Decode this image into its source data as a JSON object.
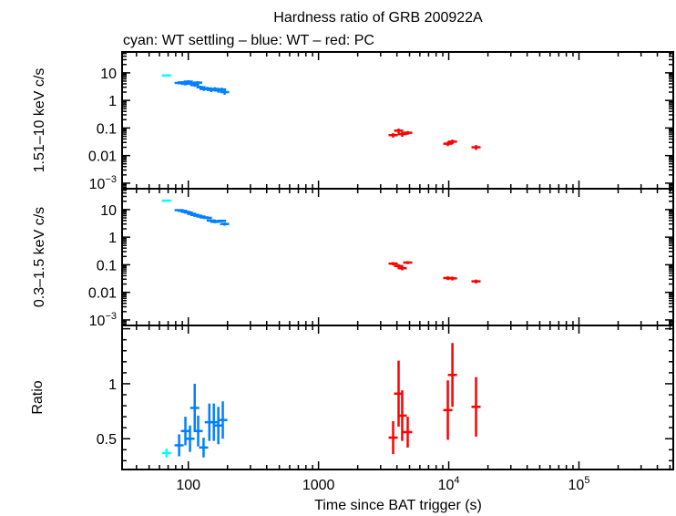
{
  "chart_data": {
    "type": "scatter",
    "title": "Hardness ratio of GRB 200922A",
    "subtitle": "cyan: WT settling – blue: WT – red: PC",
    "xlabel": "Time since BAT trigger (s)",
    "xscale": "log",
    "xlim": [
      31,
      530000
    ],
    "xticks": [
      {
        "v": 100,
        "label": "100"
      },
      {
        "v": 1000,
        "label": "1000"
      },
      {
        "v": 10000,
        "label": "10",
        "sup": "4"
      },
      {
        "v": 100000,
        "label": "10",
        "sup": "5"
      }
    ],
    "colors": {
      "WT settling": "#00ffff",
      "WT": "#0080ff",
      "PC": "#ff0000"
    },
    "panels": [
      {
        "ylabel": "1.51–10 keV c/s",
        "yscale": "log",
        "ylim": [
          0.00063,
          57
        ],
        "yticks": [
          {
            "v": 10,
            "label": "10"
          },
          {
            "v": 1,
            "label": "1"
          },
          {
            "v": 0.1,
            "label": "0.1"
          },
          {
            "v": 0.01,
            "label": "0.01"
          },
          {
            "v": 0.001,
            "label": "10",
            "sup": "−3"
          }
        ],
        "series": [
          {
            "mode": "WT settling",
            "x": [
              68
            ],
            "y": [
              8.0
            ],
            "yerr": [
              0.6
            ]
          },
          {
            "mode": "WT",
            "x": [
              85,
              90,
              95,
              100,
              106,
              112,
              118,
              125,
              132,
              140,
              150,
              160,
              170,
              180,
              190
            ],
            "y": [
              4.3,
              4.5,
              4.0,
              4.8,
              4.2,
              3.6,
              4.4,
              3.0,
              2.6,
              2.7,
              2.4,
              2.6,
              2.3,
              2.5,
              2.0
            ],
            "yerr": [
              0.5,
              0.5,
              0.5,
              0.6,
              0.5,
              0.5,
              0.6,
              0.4,
              0.4,
              0.4,
              0.4,
              0.4,
              0.4,
              0.4,
              0.4
            ]
          },
          {
            "mode": "PC",
            "x": [
              3740,
              4120,
              4390,
              4840,
              9840,
              10670,
              16200
            ],
            "y": [
              0.055,
              0.08,
              0.06,
              0.067,
              0.027,
              0.032,
              0.02
            ],
            "yerr": [
              0.01,
              0.015,
              0.012,
              0.01,
              0.005,
              0.006,
              0.004
            ]
          }
        ]
      },
      {
        "ylabel": "0.3–1.5 keV c/s",
        "yscale": "log",
        "ylim": [
          0.00063,
          57
        ],
        "yticks": [
          {
            "v": 10,
            "label": "10"
          },
          {
            "v": 1,
            "label": "1"
          },
          {
            "v": 0.1,
            "label": "0.1"
          },
          {
            "v": 0.01,
            "label": "0.01"
          },
          {
            "v": 0.001,
            "label": "10",
            "sup": "−3"
          }
        ],
        "series": [
          {
            "mode": "WT settling",
            "x": [
              68
            ],
            "y": [
              21
            ],
            "yerr": [
              1.2
            ]
          },
          {
            "mode": "WT",
            "x": [
              85,
              90,
              95,
              100,
              106,
              112,
              118,
              125,
              132,
              140,
              150,
              160,
              170,
              180,
              190
            ],
            "y": [
              9.5,
              9.0,
              8.3,
              7.8,
              7.0,
              6.4,
              6.0,
              5.6,
              5.2,
              5.0,
              4.0,
              3.6,
              3.8,
              3.9,
              3.0
            ],
            "yerr": [
              0.8,
              0.8,
              0.7,
              0.7,
              0.6,
              0.6,
              0.6,
              0.5,
              0.5,
              0.5,
              0.4,
              0.4,
              0.4,
              0.4,
              0.4
            ]
          },
          {
            "mode": "PC",
            "x": [
              3740,
              4120,
              4390,
              4840,
              9840,
              10670,
              16200
            ],
            "y": [
              0.11,
              0.09,
              0.075,
              0.12,
              0.033,
              0.032,
              0.025
            ],
            "yerr": [
              0.015,
              0.015,
              0.012,
              0.015,
              0.005,
              0.005,
              0.004
            ]
          }
        ]
      },
      {
        "ylabel": "Ratio",
        "yscale": "linear",
        "ylim": [
          0.22,
          1.53
        ],
        "yticks": [
          {
            "v": 1,
            "label": "1"
          },
          {
            "v": 0.5,
            "label": "0.5"
          }
        ],
        "series": [
          {
            "mode": "WT settling",
            "x": [
              68
            ],
            "y": [
              0.37
            ],
            "yerr": [
              0.04
            ]
          },
          {
            "mode": "WT",
            "x": [
              85,
              95,
              103,
              112,
              119,
              131,
              145,
              157,
              170,
              184
            ],
            "y": [
              0.44,
              0.57,
              0.5,
              0.78,
              0.57,
              0.42,
              0.65,
              0.65,
              0.62,
              0.67
            ],
            "yerr": [
              0.1,
              0.13,
              0.12,
              0.22,
              0.14,
              0.09,
              0.17,
              0.17,
              0.17,
              0.17
            ]
          },
          {
            "mode": "PC",
            "x": [
              3740,
              4120,
              4390,
              4840,
              9840,
              10670,
              16200
            ],
            "y": [
              0.51,
              0.91,
              0.71,
              0.56,
              0.76,
              1.08,
              0.79
            ],
            "yerr": [
              0.15,
              0.3,
              0.23,
              0.14,
              0.27,
              0.29,
              0.27
            ]
          }
        ]
      }
    ]
  }
}
